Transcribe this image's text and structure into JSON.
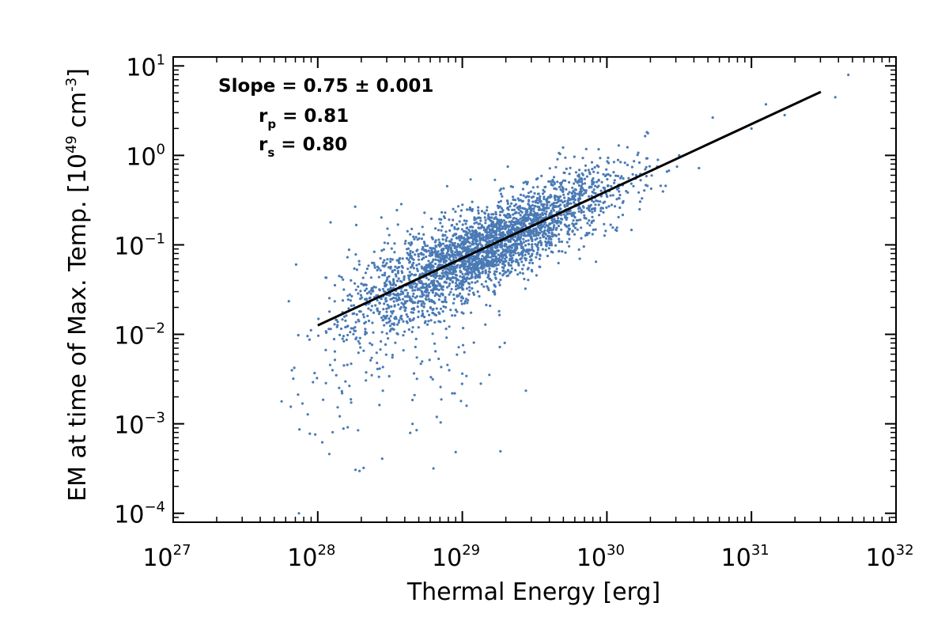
{
  "chart_data": {
    "type": "scatter",
    "title": "",
    "xlabel": "Thermal Energy [erg]",
    "ylabel_main": "EM at time of Max. Temp. [10",
    "ylabel_exp": "49",
    "ylabel_unit": " cm",
    "ylabel_unit_exp": "-3",
    "ylabel_close": "]",
    "xscale": "log",
    "yscale": "log",
    "xlim_log10": [
      27,
      32
    ],
    "ylim_log10": [
      -4.1,
      1.1
    ],
    "x_ticks": [
      {
        "base": "10",
        "exp": "27",
        "log": 27
      },
      {
        "base": "10",
        "exp": "28",
        "log": 28
      },
      {
        "base": "10",
        "exp": "29",
        "log": 29
      },
      {
        "base": "10",
        "exp": "30",
        "log": 30
      },
      {
        "base": "10",
        "exp": "31",
        "log": 31
      },
      {
        "base": "10",
        "exp": "32",
        "log": 32
      }
    ],
    "y_ticks": [
      {
        "base": "10",
        "exp": "−4",
        "log": -4
      },
      {
        "base": "10",
        "exp": "−3",
        "log": -3
      },
      {
        "base": "10",
        "exp": "−2",
        "log": -2
      },
      {
        "base": "10",
        "exp": "−1",
        "log": -1
      },
      {
        "base": "10",
        "exp": "0",
        "log": 0
      },
      {
        "base": "10",
        "exp": "1",
        "log": 1
      }
    ],
    "point_color": "#4a7ab5",
    "line_color": "#000000",
    "fit_line": {
      "x_log": [
        28.0,
        31.48
      ],
      "y_log": [
        -1.9,
        0.71
      ]
    },
    "annotations": {
      "slope": "Slope = 0.75 ± 0.001",
      "rp_base": "r",
      "rp_sub": "p",
      "rp_value": " = 0.81",
      "rs_base": "r",
      "rs_sub": "s",
      "rs_value": " = 0.80"
    },
    "scatter": {
      "n_points": 3200,
      "x_log_mean": 29.15,
      "x_log_sd": 0.45,
      "slope": 0.75,
      "intercept_log": -22.9,
      "scatter_sd": 0.22,
      "outlier_fraction": 0.05,
      "outlier_x_log_range": [
        27.8,
        29.3
      ],
      "outlier_y_log_range": [
        -3.6,
        -1.3
      ],
      "outliers": [
        {
          "x_log": 27.75,
          "y_log": -2.75
        },
        {
          "x_log": 27.87,
          "y_log": -4.0
        },
        {
          "x_log": 27.8,
          "y_log": -1.63
        },
        {
          "x_log": 27.85,
          "y_log": -1.22
        },
        {
          "x_log": 28.45,
          "y_log": -2.63
        },
        {
          "x_log": 29.44,
          "y_log": -2.63
        },
        {
          "x_log": 30.5,
          "y_log": 0.0
        },
        {
          "x_log": 31.0,
          "y_log": 0.3
        },
        {
          "x_log": 31.1,
          "y_log": 0.57
        },
        {
          "x_log": 31.23,
          "y_log": 0.45
        },
        {
          "x_log": 31.67,
          "y_log": 0.9
        },
        {
          "x_log": 31.58,
          "y_log": 0.65
        }
      ]
    }
  }
}
